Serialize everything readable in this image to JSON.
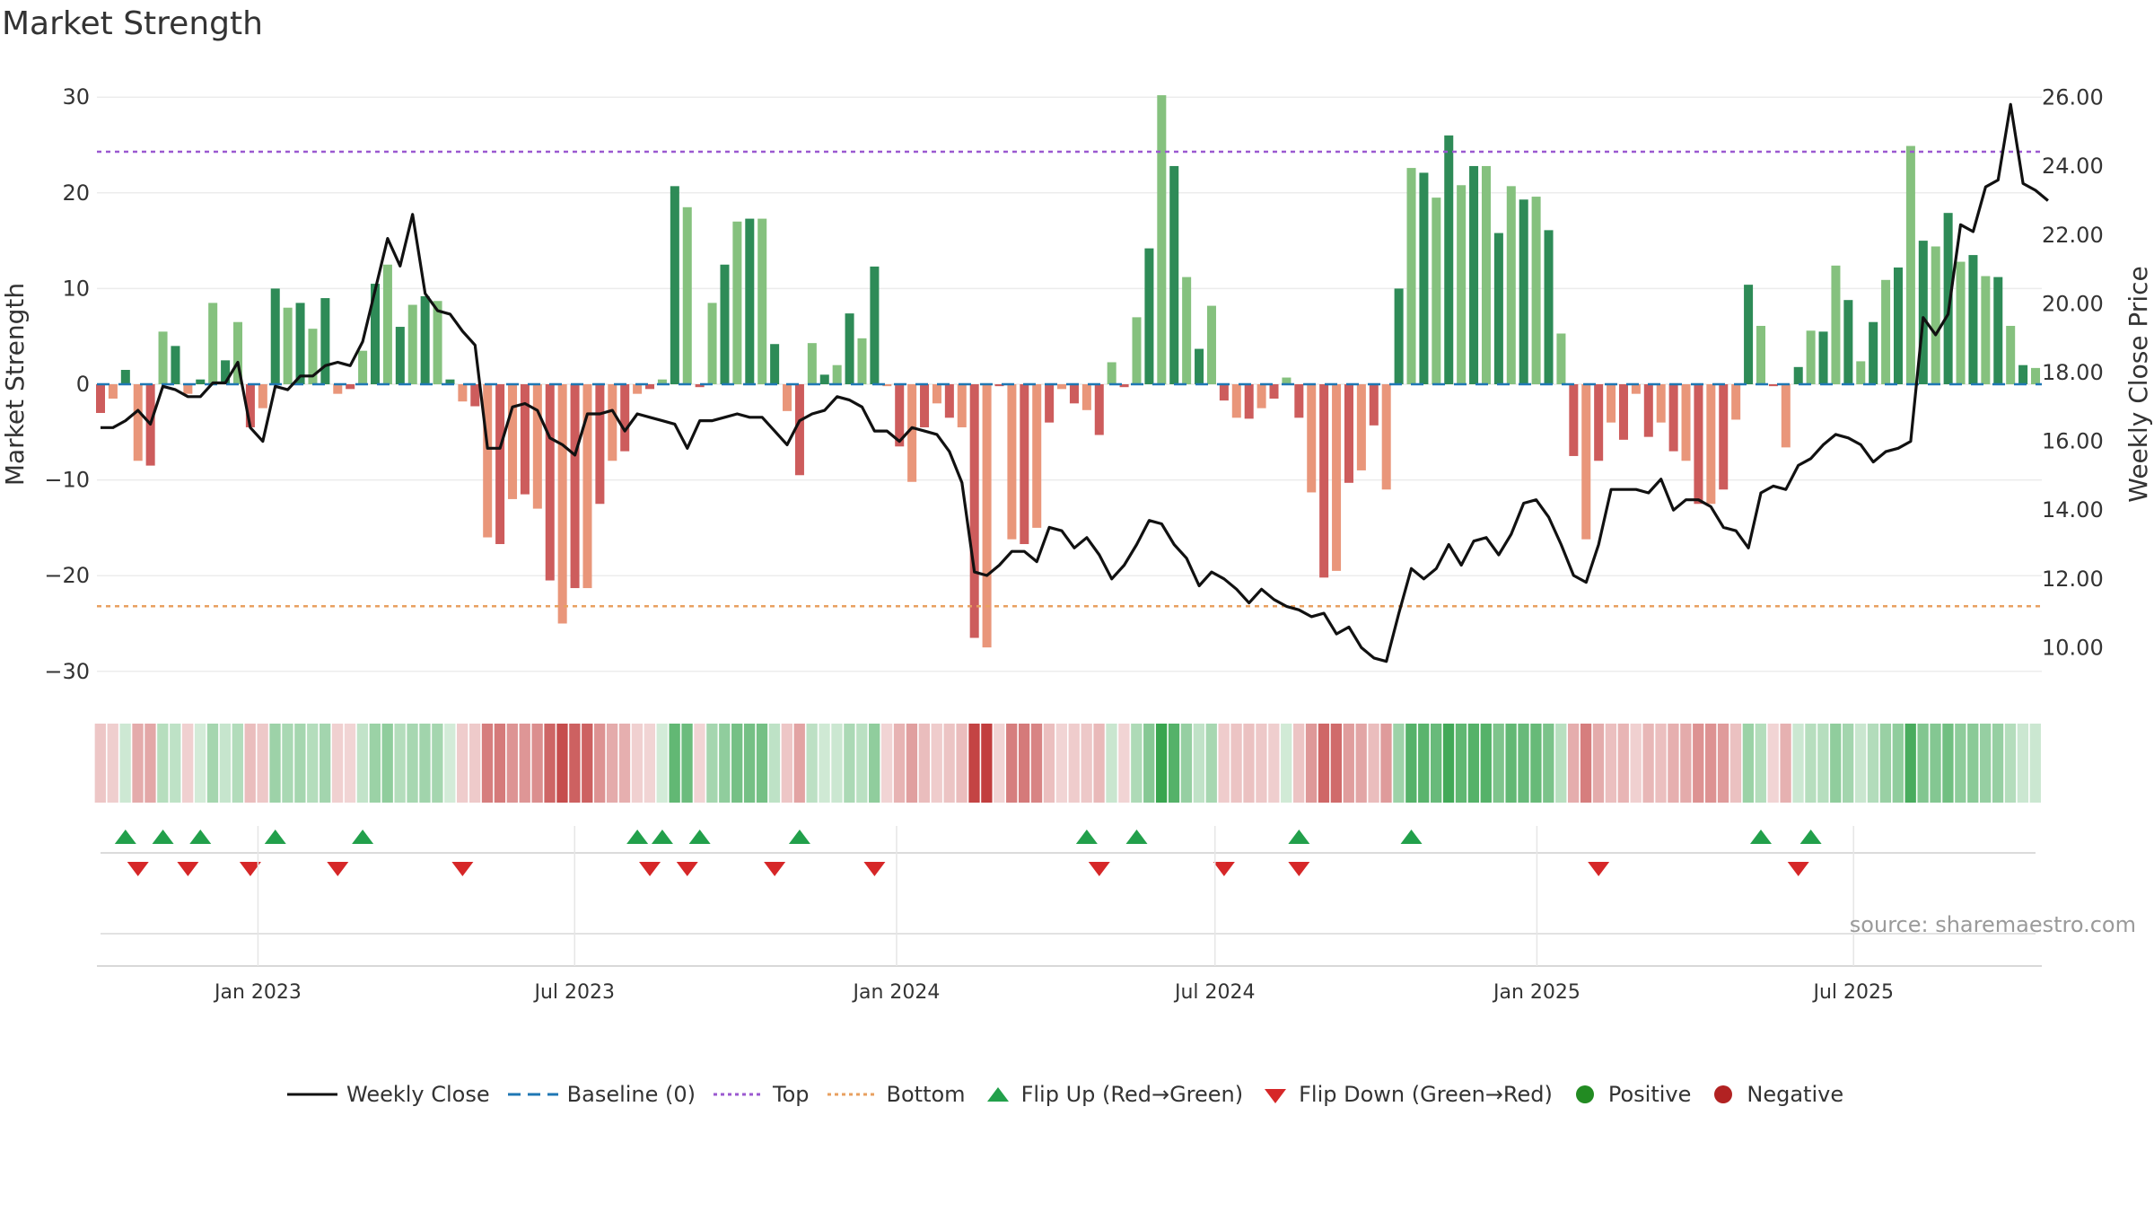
{
  "chart_data": {
    "type": "bar",
    "title": "Market Strength",
    "source": "source: sharemaestro.com",
    "left_axis": {
      "label": "Market Strength",
      "ylim": [
        -33,
        31
      ],
      "ticks": [
        30,
        20,
        10,
        0,
        -10,
        -20,
        -30
      ],
      "tick_labels": [
        "30",
        "20",
        "10",
        "0",
        "−10",
        "−20",
        "−30"
      ]
    },
    "right_axis": {
      "label": "Weekly Close Price",
      "ylim": [
        8.8,
        26.6
      ],
      "ticks": [
        26,
        24,
        22,
        20,
        18,
        16,
        14,
        12,
        10
      ],
      "tick_labels": [
        "26.00",
        "24.00",
        "22.00",
        "20.00",
        "18.00",
        "16.00",
        "14.00",
        "12.00",
        "10.00"
      ]
    },
    "x_axis": {
      "date_range": [
        "2022-10-03",
        "2025-10-13"
      ],
      "ticks": [
        "2023-01-01",
        "2023-07-01",
        "2024-01-01",
        "2024-07-01",
        "2025-01-01",
        "2025-07-01"
      ],
      "tick_labels": [
        "Jan 2023",
        "Jul 2023",
        "Jan 2024",
        "Jul 2024",
        "Jan 2025",
        "Jul 2025"
      ]
    },
    "top_line": 24.3,
    "bottom_line": -23.2,
    "colors": {
      "green_dark": "#2e8b57",
      "green_light": "#85c17e",
      "red_dark": "#cd5c5c",
      "red_light": "#e9967a",
      "close": "#111111",
      "baseline": "#1f77b4",
      "top": "#9b59d0",
      "bottom": "#e8a060",
      "flip_up": "#22a04b",
      "flip_down": "#d62728",
      "positive": "#228b22",
      "negative": "#b22222"
    },
    "series": [
      {
        "name": "Market Strength",
        "start": "2022-10-03",
        "freq": "W",
        "values": [
          -3,
          -1.5,
          1.5,
          -8,
          -8.5,
          5.5,
          4,
          -1,
          0.5,
          8.5,
          2.5,
          6.5,
          -4.5,
          -2.5,
          10,
          8,
          8.5,
          5.8,
          9,
          -1,
          -0.5,
          3.5,
          10.5,
          12.5,
          6,
          8.3,
          9.2,
          8.7,
          0.5,
          -1.8,
          -2.3,
          -16,
          -16.7,
          -12,
          -11.5,
          -13,
          -20.5,
          -25,
          -21.3,
          -21.3,
          -12.5,
          -8,
          -7,
          -1,
          -0.5,
          0.5,
          20.7,
          18.5,
          -0.3,
          8.5,
          12.5,
          17,
          17.3,
          17.3,
          4.2,
          -2.8,
          -9.5,
          4.3,
          1,
          2,
          7.4,
          4.8,
          12.3,
          -0.2,
          -6.5,
          -10.2,
          -4.5,
          -2,
          -3.5,
          -4.5,
          -26.5,
          -27.5,
          -0.2,
          -16.2,
          -16.7,
          -15,
          -4,
          -0.5,
          -2,
          -2.7,
          -5.3,
          2.3,
          -0.3,
          7,
          14.2,
          30.2,
          22.8,
          11.2,
          3.7,
          8.2,
          -1.7,
          -3.5,
          -3.6,
          -2.5,
          -1.5,
          0.7,
          -3.5,
          -11.3,
          -20.2,
          -19.5,
          -10.3,
          -9,
          -4.3,
          -11,
          10,
          22.6,
          22.1,
          19.5,
          26,
          20.8,
          22.8,
          22.8,
          15.8,
          20.7,
          19.3,
          19.6,
          16.1,
          5.3,
          -7.5,
          -16.2,
          -8,
          -4,
          -5.8,
          -1,
          -5.5,
          -4,
          -7,
          -8,
          -12.5,
          -12.5,
          -11,
          -3.7,
          10.4,
          6.1,
          -0.2,
          -6.6,
          1.8,
          5.6,
          5.5,
          12.4,
          8.8,
          2.4,
          6.5,
          10.9,
          12.2,
          24.9,
          15,
          14.4,
          17.9,
          12.8,
          13.5,
          11.3,
          11.2,
          6.1,
          2,
          1.7
        ]
      },
      {
        "name": "Weekly Close",
        "start": "2022-10-03",
        "freq": "W",
        "values": [
          16.4,
          16.4,
          16.6,
          16.9,
          16.5,
          17.6,
          17.5,
          17.3,
          17.3,
          17.7,
          17.7,
          18.3,
          16.4,
          16,
          17.6,
          17.5,
          17.9,
          17.9,
          18.2,
          18.3,
          18.2,
          18.9,
          20.4,
          21.9,
          21.1,
          22.6,
          20.3,
          19.8,
          19.7,
          19.2,
          18.8,
          15.8,
          15.8,
          17,
          17.1,
          16.9,
          16.1,
          15.9,
          15.6,
          16.8,
          16.8,
          16.9,
          16.3,
          16.8,
          16.7,
          16.6,
          16.5,
          15.8,
          16.6,
          16.6,
          16.7,
          16.8,
          16.7,
          16.7,
          16.3,
          15.9,
          16.6,
          16.8,
          16.9,
          17.3,
          17.2,
          17,
          16.3,
          16.3,
          16,
          16.4,
          16.3,
          16.2,
          15.7,
          14.8,
          12.2,
          12.1,
          12.4,
          12.8,
          12.8,
          12.5,
          13.5,
          13.4,
          12.9,
          13.2,
          12.7,
          12,
          12.4,
          13,
          13.7,
          13.6,
          13,
          12.6,
          11.8,
          12.2,
          12,
          11.7,
          11.3,
          11.7,
          11.4,
          11.2,
          11.1,
          10.9,
          11,
          10.4,
          10.6,
          10,
          9.7,
          9.6,
          11,
          12.3,
          12,
          12.3,
          13,
          12.4,
          13.1,
          13.2,
          12.7,
          13.3,
          14.2,
          14.3,
          13.8,
          13,
          12.1,
          11.9,
          13,
          14.6,
          14.6,
          14.6,
          14.5,
          14.9,
          14,
          14.3,
          14.3,
          14.1,
          13.5,
          13.4,
          12.9,
          14.5,
          14.7,
          14.6,
          15.3,
          15.5,
          15.9,
          16.2,
          16.1,
          15.9,
          15.4,
          15.7,
          15.8,
          16,
          19.6,
          19.1,
          19.7,
          22.3,
          22.1,
          23.4,
          23.6,
          25.8,
          23.5,
          23.3,
          23
        ]
      }
    ],
    "heat_strip": [
      {
        "from": "2022-10-03",
        "pattern": "mixed-light"
      }
    ],
    "flip_up_weeks": [
      2,
      5,
      8,
      14,
      21,
      43,
      45,
      48,
      56,
      79,
      83,
      96,
      105,
      133,
      137
    ],
    "flip_down_weeks": [
      3,
      7,
      12,
      19,
      29,
      44,
      47,
      54,
      62,
      80,
      90,
      96,
      120,
      136
    ],
    "legend": [
      {
        "label": "Weekly Close",
        "marker": "line"
      },
      {
        "label": "Baseline (0)",
        "marker": "dash"
      },
      {
        "label": "Top",
        "marker": "dot-purple"
      },
      {
        "label": "Bottom",
        "marker": "dot-orange"
      },
      {
        "label": "Flip Up (Red→Green)",
        "marker": "triangle-up"
      },
      {
        "label": "Flip Down (Green→Red)",
        "marker": "triangle-down"
      },
      {
        "label": "Positive",
        "marker": "circle-green"
      },
      {
        "label": "Negative",
        "marker": "circle-red"
      }
    ]
  }
}
